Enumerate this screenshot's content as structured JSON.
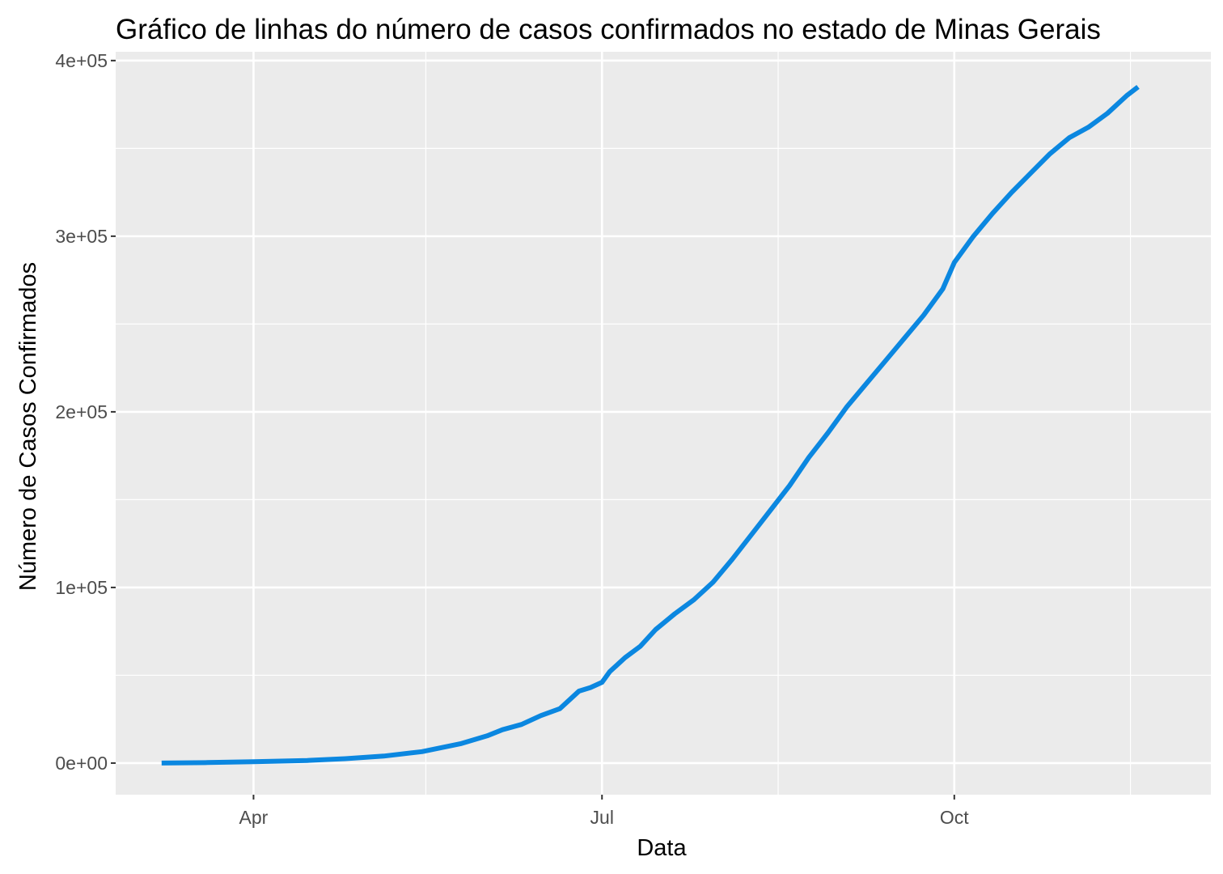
{
  "chart_data": {
    "type": "line",
    "title": "Gráfico de linhas do número de casos confirmados no estado de Minas Gerais",
    "xlabel": "Data",
    "ylabel": "Número de Casos Confirmados",
    "x_ticks": [
      {
        "date": "2020-04-01",
        "label": "Apr"
      },
      {
        "date": "2020-07-01",
        "label": "Jul"
      },
      {
        "date": "2020-10-01",
        "label": "Oct"
      }
    ],
    "x_minor_ticks": [
      "2020-05-16",
      "2020-08-16",
      "2020-11-16"
    ],
    "xlim": [
      "2020-02-25",
      "2020-12-07"
    ],
    "y_ticks": [
      {
        "value": 0,
        "label": "0e+00"
      },
      {
        "value": 100000,
        "label": "1e+05"
      },
      {
        "value": 200000,
        "label": "2e+05"
      },
      {
        "value": 300000,
        "label": "3e+05"
      },
      {
        "value": 400000,
        "label": "4e+05"
      }
    ],
    "y_minor_ticks": [
      50000,
      150000,
      250000,
      350000
    ],
    "ylim": [
      -18000,
      405000
    ],
    "grid": true,
    "series": [
      {
        "color": "#0b87e0",
        "x": [
          "2020-03-08",
          "2020-03-20",
          "2020-04-01",
          "2020-04-15",
          "2020-04-25",
          "2020-05-05",
          "2020-05-15",
          "2020-05-25",
          "2020-06-01",
          "2020-06-05",
          "2020-06-10",
          "2020-06-15",
          "2020-06-20",
          "2020-06-25",
          "2020-06-28",
          "2020-07-01",
          "2020-07-03",
          "2020-07-07",
          "2020-07-11",
          "2020-07-15",
          "2020-07-20",
          "2020-07-25",
          "2020-07-30",
          "2020-08-04",
          "2020-08-09",
          "2020-08-14",
          "2020-08-19",
          "2020-08-24",
          "2020-08-29",
          "2020-09-03",
          "2020-09-08",
          "2020-09-13",
          "2020-09-18",
          "2020-09-23",
          "2020-09-28",
          "2020-10-01",
          "2020-10-06",
          "2020-10-11",
          "2020-10-16",
          "2020-10-21",
          "2020-10-26",
          "2020-10-31",
          "2020-11-05",
          "2020-11-10",
          "2020-11-15",
          "2020-11-18"
        ],
        "y": [
          0,
          300,
          800,
          1500,
          2500,
          4000,
          6500,
          11000,
          15500,
          19000,
          22000,
          27000,
          31000,
          41000,
          43000,
          46000,
          52000,
          60000,
          66500,
          76000,
          85000,
          93000,
          103000,
          116000,
          130000,
          144000,
          158000,
          174000,
          188000,
          203000,
          216000,
          229000,
          242000,
          255000,
          270000,
          285000,
          300000,
          313000,
          325000,
          336000,
          347000,
          356000,
          362000,
          370000,
          380000,
          385000
        ]
      }
    ]
  }
}
